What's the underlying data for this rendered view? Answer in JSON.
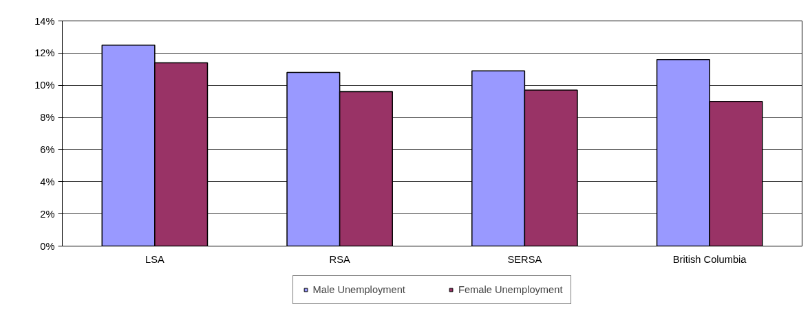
{
  "chart_data": {
    "type": "bar",
    "categories": [
      "LSA",
      "RSA",
      "SERSA",
      "British Columbia"
    ],
    "series": [
      {
        "name": "Male Unemployment",
        "color": "#9999ff",
        "values": [
          12.5,
          10.8,
          10.9,
          11.6
        ]
      },
      {
        "name": "Female Unemployment",
        "color": "#993366",
        "values": [
          11.4,
          9.6,
          9.7,
          9.0
        ]
      }
    ],
    "ylim": [
      0,
      14
    ],
    "yticks": [
      {
        "value": 0,
        "label": "0%"
      },
      {
        "value": 2,
        "label": "2%"
      },
      {
        "value": 4,
        "label": "4%"
      },
      {
        "value": 6,
        "label": "6%"
      },
      {
        "value": 8,
        "label": "8%"
      },
      {
        "value": 10,
        "label": "10%"
      },
      {
        "value": 12,
        "label": "12%"
      },
      {
        "value": 14,
        "label": "14%"
      }
    ],
    "grid": "y",
    "legend": "bottom"
  }
}
